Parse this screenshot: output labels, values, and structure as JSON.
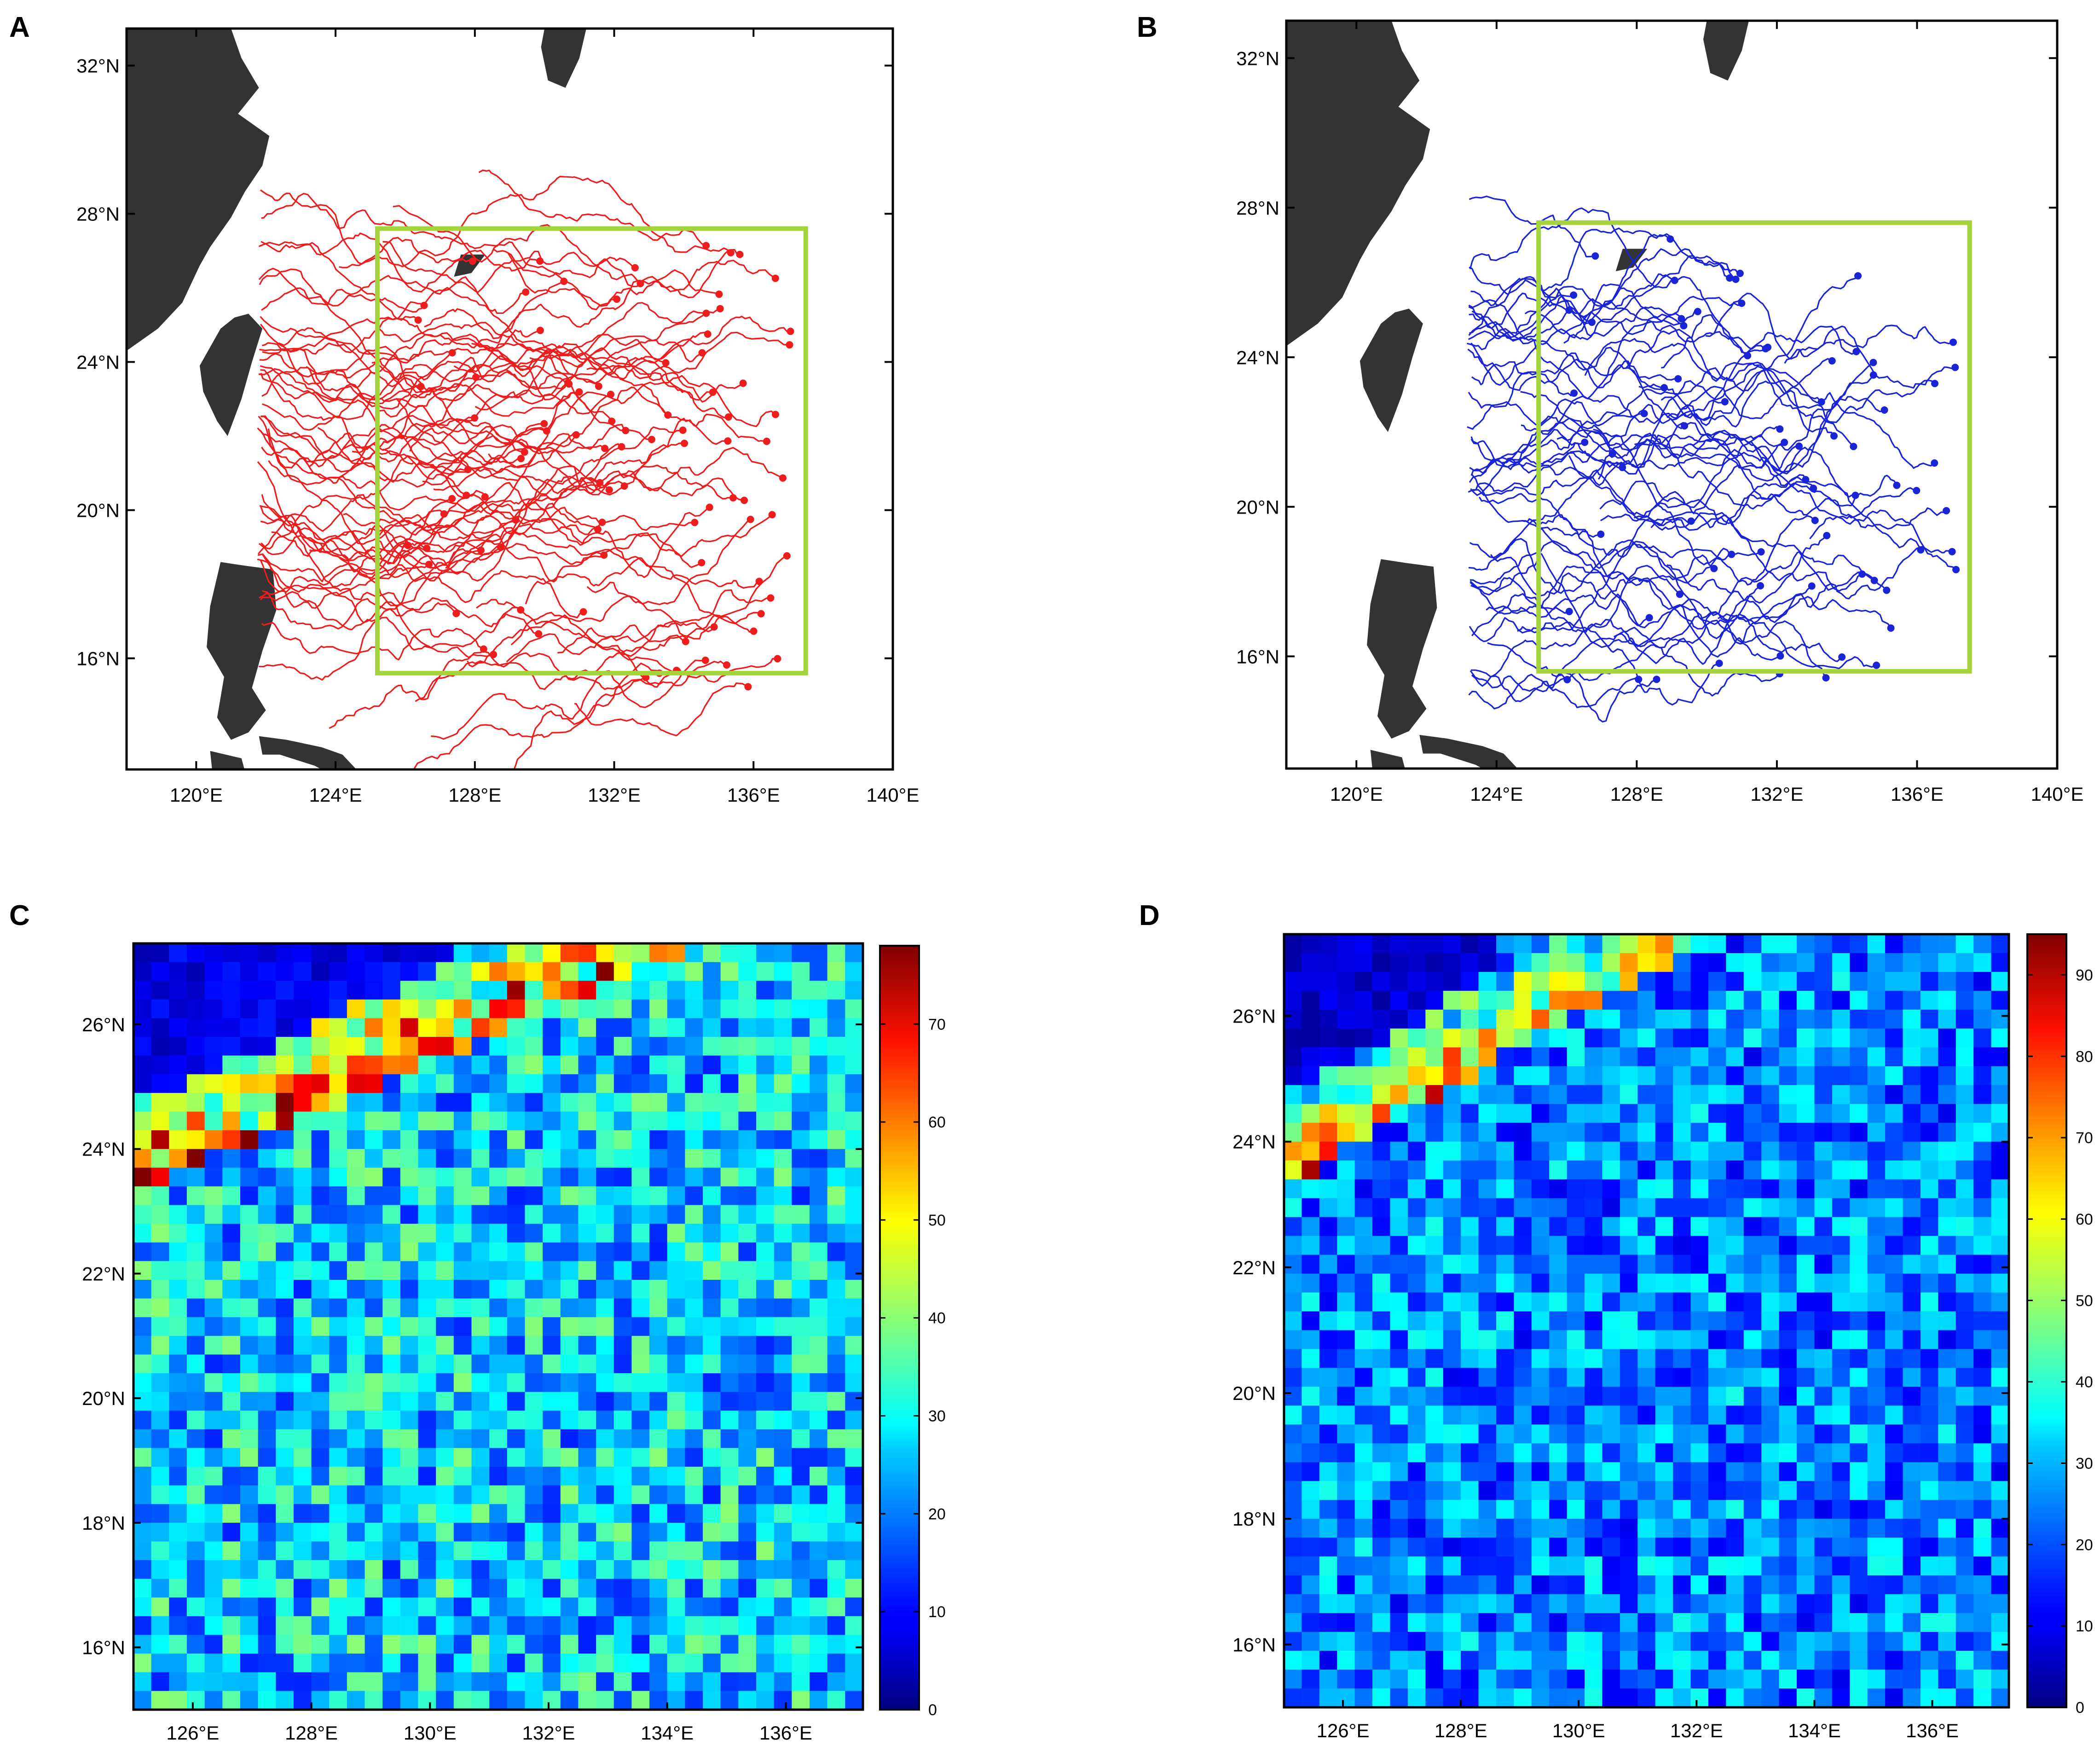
{
  "panels": {
    "A": {
      "letter": "A",
      "track_color": "#ee1c1c",
      "box_color": "#a3d43b",
      "land_color": "#333333"
    },
    "B": {
      "letter": "B",
      "track_color": "#1a24d6",
      "box_color": "#a3d43b",
      "land_color": "#333333"
    },
    "C": {
      "letter": "C"
    },
    "D": {
      "letter": "D"
    }
  },
  "map_axes": {
    "lon_ticks": [
      "120°E",
      "124°E",
      "128°E",
      "132°E",
      "136°E",
      "140°E"
    ],
    "lon_values": [
      120,
      124,
      128,
      132,
      136,
      140
    ],
    "lat_ticks": [
      "16°N",
      "20°N",
      "24°N",
      "28°N",
      "32°N"
    ],
    "lat_values": [
      16,
      20,
      24,
      28,
      32
    ],
    "lon_range": [
      118,
      140
    ],
    "lat_range": [
      13,
      33
    ],
    "box": {
      "lon": [
        125.2,
        137.5
      ],
      "lat": [
        15.6,
        27.6
      ]
    }
  },
  "heatmap_axes": {
    "lon_ticks": [
      "126°E",
      "128°E",
      "130°E",
      "132°E",
      "134°E",
      "136°E"
    ],
    "lon_values": [
      126,
      128,
      130,
      132,
      134,
      136
    ],
    "lat_ticks": [
      "16°N",
      "18°N",
      "20°N",
      "22°N",
      "24°N",
      "26°N"
    ],
    "lat_values": [
      16,
      18,
      20,
      22,
      24,
      26
    ],
    "lon_range": [
      125,
      137.3
    ],
    "lat_range": [
      15,
      27.3
    ]
  },
  "colorbars": {
    "C": {
      "ticks": [
        "0",
        "10",
        "20",
        "30",
        "40",
        "50",
        "60",
        "70"
      ],
      "values": [
        0,
        10,
        20,
        30,
        40,
        50,
        60,
        70
      ],
      "max": 78
    },
    "D": {
      "ticks": [
        "0",
        "10",
        "20",
        "30",
        "40",
        "50",
        "60",
        "70",
        "80",
        "90"
      ],
      "values": [
        0,
        10,
        20,
        30,
        40,
        50,
        60,
        70,
        80,
        90
      ],
      "max": 95
    }
  },
  "colormap": "jet"
}
